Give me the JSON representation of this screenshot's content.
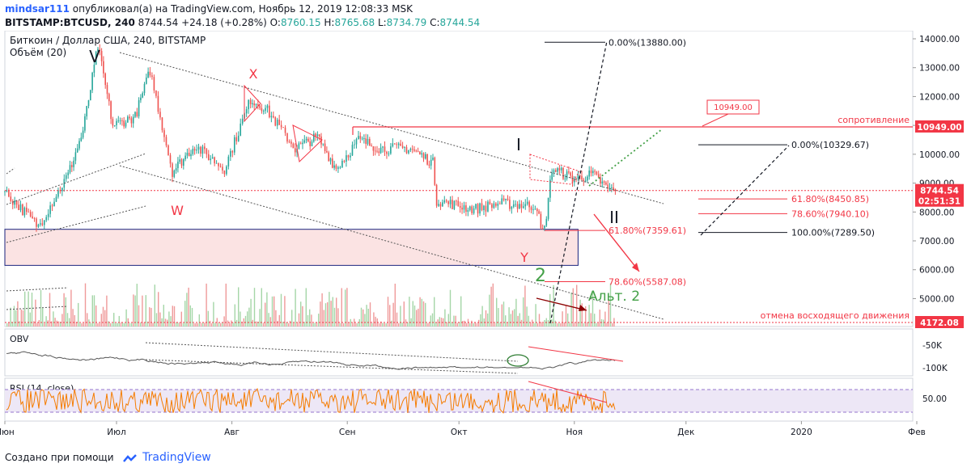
{
  "header": {
    "author": "mindsar111",
    "published_text": "опубликовал(а) на TradingView.com, Ноябрь 12, 2019 12:08:33 MSK",
    "symbol": "BITSTAMP:BTCUSD, 240",
    "last": "8744.54",
    "change": "+24.18 (+0.28%)",
    "o_label": "O:",
    "o": "8760.15",
    "h_label": "H:",
    "h": "8765.68",
    "l_label": "L:",
    "l": "8734.79",
    "c_label": "C:",
    "c": "8744.54"
  },
  "footer": {
    "made_with": "Создано при помощи",
    "brand": "TradingView"
  },
  "chart_data": {
    "type": "line",
    "title": "Биткоин / Доллар США, 240, BITSTAMP",
    "volume_label": "Объём (20)",
    "y_ticks": [
      "14000.00",
      "13000.00",
      "12000.00",
      "11000.00",
      "10000.00",
      "9000.00",
      "8000.00",
      "7000.00",
      "6000.00",
      "5000.00"
    ],
    "ylim": [
      4172,
      14000
    ],
    "x_ticks": [
      "Июн",
      "Июл",
      "Авг",
      "Сен",
      "Окт",
      "Ноя",
      "Дек",
      "2020",
      "Фев"
    ],
    "price_series": {
      "name": "BTCUSD",
      "x": [
        "2019-06-01",
        "2019-06-10",
        "2019-06-18",
        "2019-06-22",
        "2019-06-26",
        "2019-06-30",
        "2019-07-06",
        "2019-07-10",
        "2019-07-16",
        "2019-07-22",
        "2019-07-30",
        "2019-08-06",
        "2019-08-10",
        "2019-08-18",
        "2019-08-24",
        "2019-08-29",
        "2019-09-04",
        "2019-09-10",
        "2019-09-18",
        "2019-09-24",
        "2019-09-25",
        "2019-10-05",
        "2019-10-12",
        "2019-10-22",
        "2019-10-23",
        "2019-10-24",
        "2019-10-26",
        "2019-11-01",
        "2019-11-06",
        "2019-11-10",
        "2019-11-12"
      ],
      "values": [
        8700,
        7500,
        9300,
        10800,
        13750,
        11000,
        11300,
        12900,
        9400,
        10300,
        9500,
        11900,
        11600,
        10200,
        10600,
        9500,
        10500,
        10200,
        10200,
        9700,
        8400,
        8100,
        8300,
        8200,
        7350,
        7400,
        9500,
        9150,
        9300,
        8800,
        8744.54
      ]
    },
    "price_labels": [
      {
        "text": "10949.00",
        "value": 10949,
        "color": "#f23645"
      },
      {
        "text": "8744.54",
        "value": 8744.54,
        "color": "#f23645"
      },
      {
        "text": "02:51:31",
        "value": 8380,
        "color": "#f23645"
      },
      {
        "text": "4172.08",
        "value": 4172.08,
        "color": "#f23645"
      }
    ],
    "levels": [
      {
        "text": "0.00%(13880.00)",
        "value": 13880,
        "color": "#131722"
      },
      {
        "text": "0.00%(10329.67)",
        "value": 10329.67,
        "color": "#131722"
      },
      {
        "text": "61.80%(8450.85)",
        "value": 8450.85,
        "color": "#f23645"
      },
      {
        "text": "78.60%(7940.10)",
        "value": 7940.1,
        "color": "#f23645"
      },
      {
        "text": "100.00%(7289.50)",
        "value": 7289.5,
        "color": "#131722"
      },
      {
        "text": "61.80%(7359.61)",
        "value": 7359.61,
        "color": "#f23645"
      },
      {
        "text": "78.60%(5587.08)",
        "value": 5587.08,
        "color": "#f23645"
      }
    ],
    "resistance": {
      "text": "сопротивление",
      "value": 10949,
      "callout": "10949.00"
    },
    "cancel_line": {
      "text": "отмена восходящего движения",
      "value": 4172.08
    },
    "wave_labels": [
      {
        "text": "V",
        "color": "#131722"
      },
      {
        "text": "X",
        "color": "#f23645"
      },
      {
        "text": "W",
        "color": "#f23645"
      },
      {
        "text": "I",
        "color": "#131722"
      },
      {
        "text": "II",
        "color": "#131722"
      },
      {
        "text": "Y",
        "color": "#f23645"
      },
      {
        "text": "2",
        "color": "#43a047"
      },
      {
        "text": "Альт. 2",
        "color": "#43a047"
      }
    ],
    "obv": {
      "label": "OBV",
      "ticks": [
        "-50K",
        "-100K"
      ]
    },
    "rsi": {
      "label": "RSI (14, close)",
      "ticks": [
        "50.00"
      ]
    },
    "colors": {
      "up": "#26a69a",
      "down": "#ef5350",
      "rsi": "#f57c00",
      "obv": "#555555",
      "accent": "#f23645",
      "green": "#43a047"
    }
  }
}
